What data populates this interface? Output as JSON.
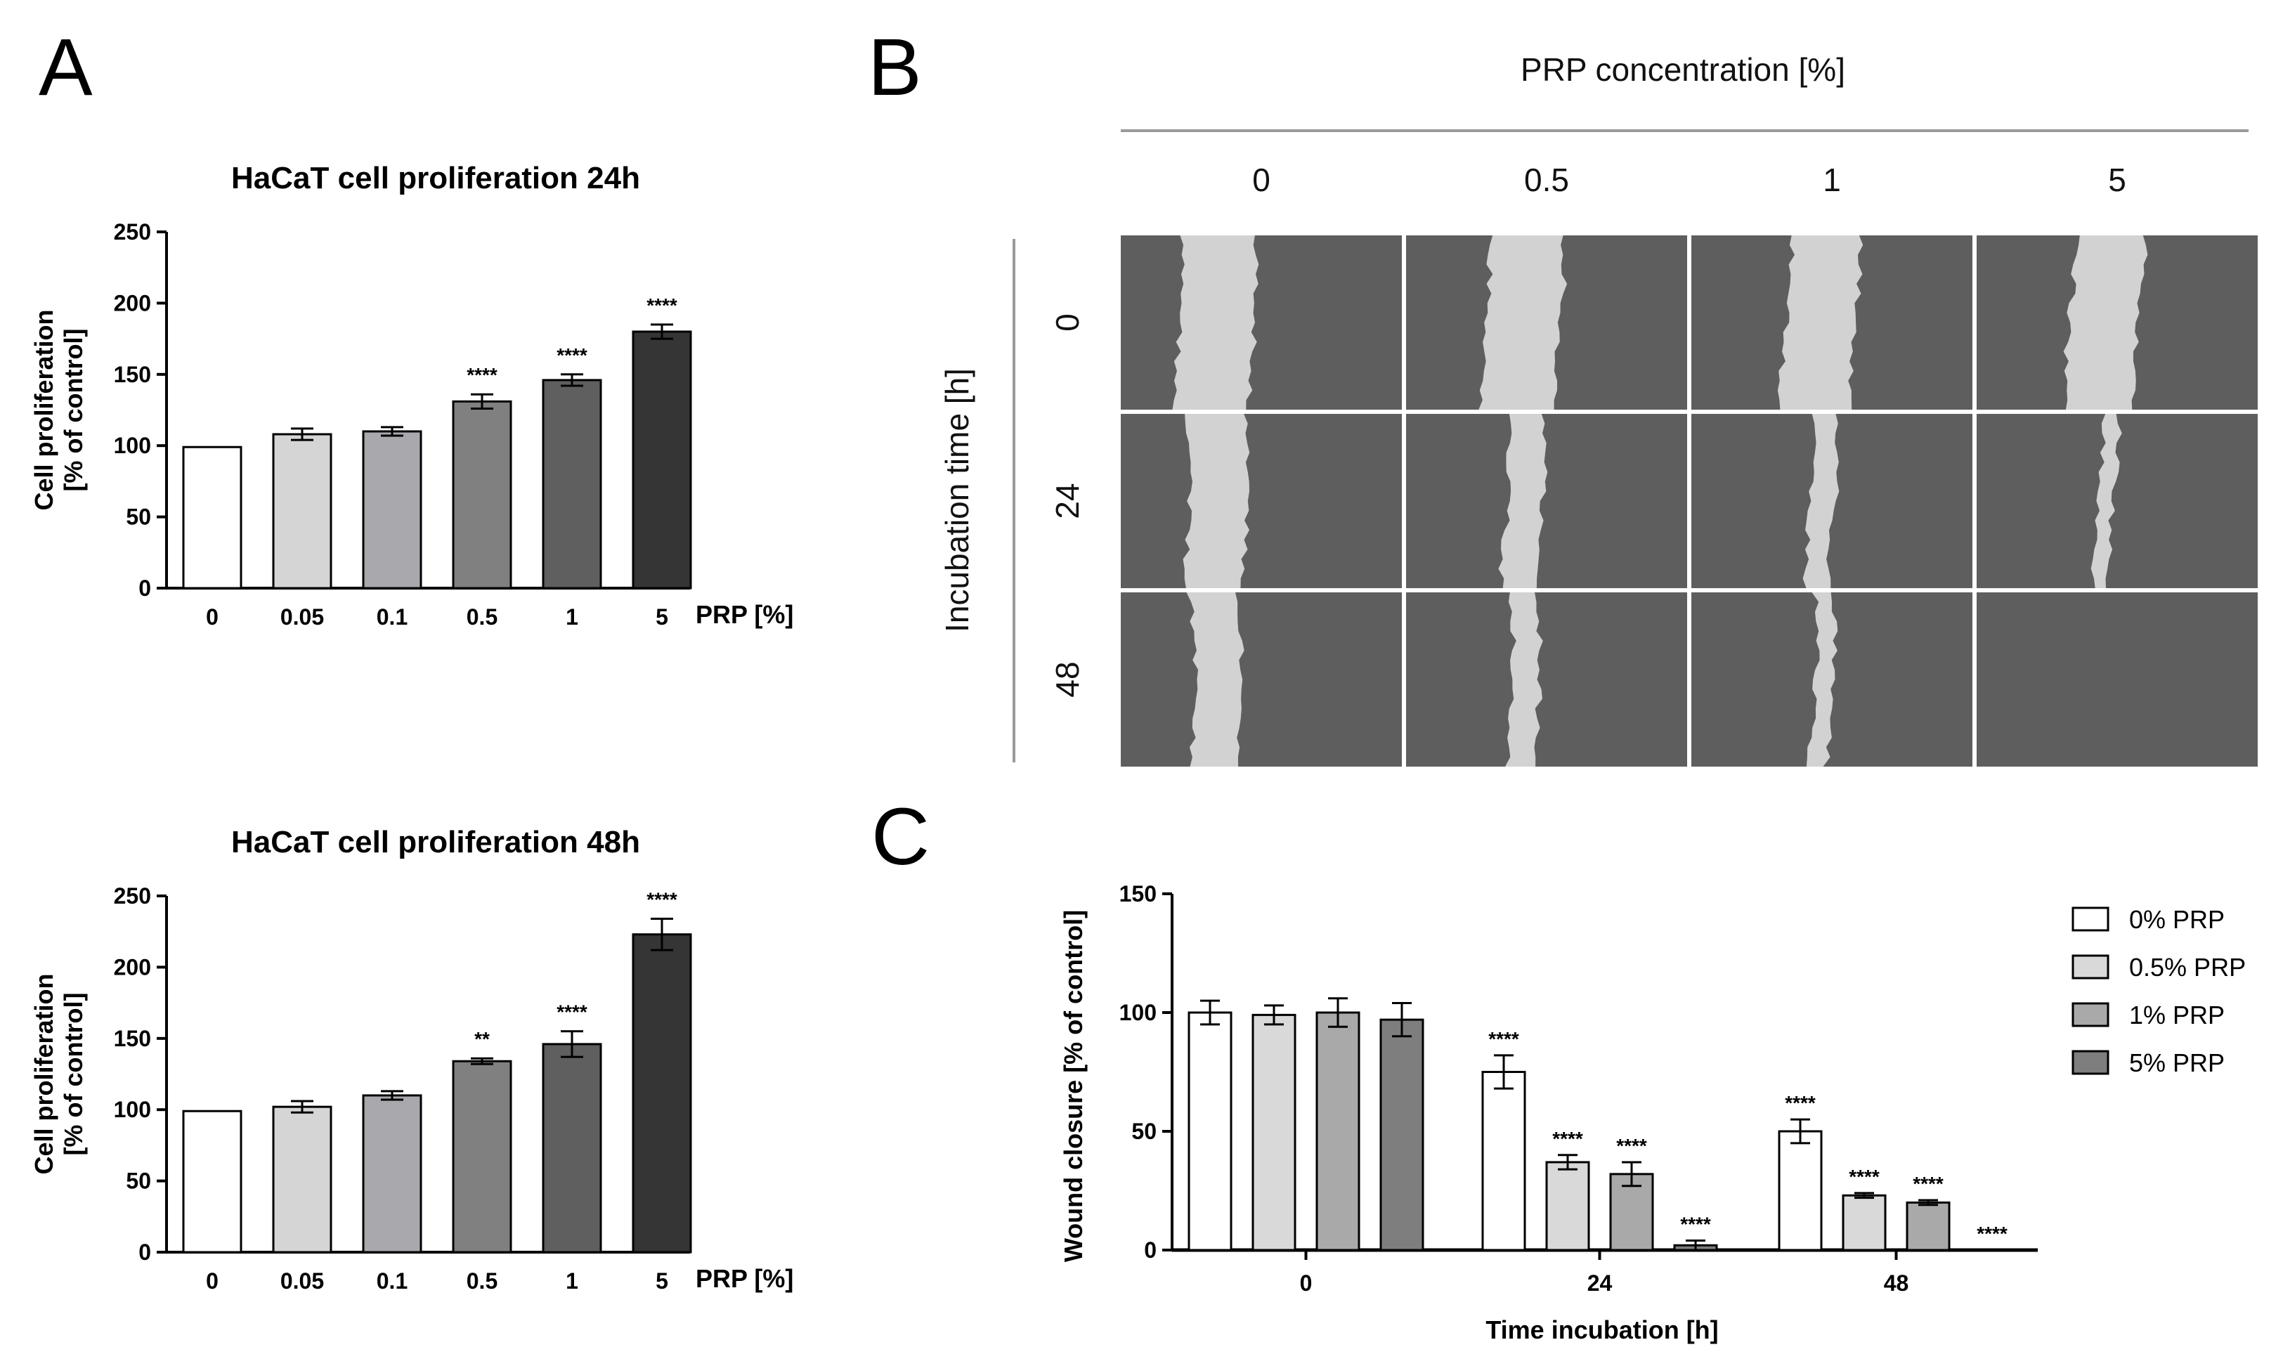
{
  "panels": {
    "a_letter": "A",
    "b_letter": "B",
    "c_letter": "C"
  },
  "panel_b": {
    "header": "PRP concentration [%]",
    "columns": [
      "0",
      "0.5",
      "1",
      "5"
    ],
    "row_axis_label": "Incubation time [h]",
    "rows": [
      "0",
      "24",
      "48"
    ],
    "colors": {
      "cell": "#5e5e5e",
      "wound": "#d2d2d2",
      "grid": "#ffffff"
    }
  },
  "chart_data": [
    {
      "type": "bar",
      "title": "HaCaT cell proliferation 24h",
      "ylabel_line1": "Cell proliferation",
      "ylabel_line2": "[% of control]",
      "xlabel": "PRP [%]",
      "categories": [
        "0",
        "0.05",
        "0.1",
        "0.5",
        "1",
        "5"
      ],
      "values": [
        99,
        108,
        110,
        131,
        146,
        180
      ],
      "errors": [
        0,
        4,
        3,
        5,
        4,
        5
      ],
      "significance": [
        "",
        "",
        "",
        "****",
        "****",
        "****"
      ],
      "ylim": [
        0,
        250
      ],
      "yticks": [
        "0",
        "50",
        "100",
        "150",
        "200",
        "250"
      ],
      "colors": [
        "#ffffff",
        "#d5d5d5",
        "#a9a9ad",
        "#808080",
        "#5f5f5f",
        "#353535"
      ]
    },
    {
      "type": "bar",
      "title": "HaCaT cell proliferation 48h",
      "ylabel_line1": "Cell proliferation",
      "ylabel_line2": "[% of control]",
      "xlabel": "PRP [%]",
      "categories": [
        "0",
        "0.05",
        "0.1",
        "0.5",
        "1",
        "5"
      ],
      "values": [
        99,
        102,
        110,
        134,
        146,
        223
      ],
      "errors": [
        0,
        4,
        3,
        2,
        9,
        11
      ],
      "significance": [
        "",
        "",
        "",
        "**",
        "****",
        "****"
      ],
      "ylim": [
        0,
        250
      ],
      "yticks": [
        "0",
        "50",
        "100",
        "150",
        "200",
        "250"
      ],
      "colors": [
        "#ffffff",
        "#d5d5d5",
        "#a9a9ad",
        "#808080",
        "#5f5f5f",
        "#353535"
      ]
    },
    {
      "type": "bar",
      "title": "",
      "ylabel": "Wound closure [% of control]",
      "xlabel": "Time incubation [h]",
      "categories": [
        "0",
        "24",
        "48"
      ],
      "series": [
        {
          "name": "0% PRP",
          "color": "#ffffff",
          "values": [
            100,
            75,
            50
          ],
          "errors": [
            5,
            7,
            5
          ],
          "significance": [
            "",
            "****",
            "****"
          ]
        },
        {
          "name": "0.5% PRP",
          "color": "#d9d9d9",
          "values": [
            99,
            37,
            23
          ],
          "errors": [
            4,
            3,
            1
          ],
          "significance": [
            "",
            "****",
            "****"
          ]
        },
        {
          "name": "1% PRP",
          "color": "#a9a9a9",
          "values": [
            100,
            32,
            20
          ],
          "errors": [
            6,
            5,
            1
          ],
          "significance": [
            "",
            "****",
            "****"
          ]
        },
        {
          "name": "5% PRP",
          "color": "#7e7e7e",
          "values": [
            97,
            2,
            0
          ],
          "errors": [
            7,
            2,
            0
          ],
          "significance": [
            "",
            "****",
            "****"
          ]
        }
      ],
      "ylim": [
        0,
        150
      ],
      "yticks": [
        "0",
        "50",
        "100",
        "150"
      ],
      "legend_position": "top-right"
    }
  ]
}
